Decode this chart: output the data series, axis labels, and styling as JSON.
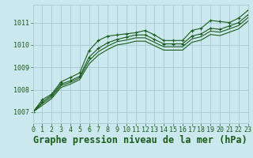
{
  "title": "Graphe pression niveau de la mer (hPa)",
  "bg_color": "#cce8ef",
  "grid_color": "#aacdd6",
  "line_color": "#1a5c1a",
  "xlim": [
    0,
    23
  ],
  "ylim": [
    1006.5,
    1011.8
  ],
  "xticks": [
    0,
    1,
    2,
    3,
    4,
    5,
    6,
    7,
    8,
    9,
    10,
    11,
    12,
    13,
    14,
    15,
    16,
    17,
    18,
    19,
    20,
    21,
    22,
    23
  ],
  "yticks": [
    1007,
    1008,
    1009,
    1010,
    1011
  ],
  "series": [
    {
      "y": [
        1007.0,
        1007.55,
        1007.8,
        1008.35,
        1008.55,
        1008.75,
        1009.75,
        1010.2,
        1010.4,
        1010.45,
        1010.5,
        1010.55,
        1010.65,
        1010.45,
        1010.2,
        1010.2,
        1010.2,
        1010.65,
        1010.75,
        1011.1,
        1011.05,
        1011.0,
        1011.2,
        1011.55
      ],
      "marker": true,
      "marker_style": "+"
    },
    {
      "y": [
        1007.0,
        1007.45,
        1007.75,
        1008.25,
        1008.4,
        1008.6,
        1009.45,
        1009.85,
        1010.1,
        1010.25,
        1010.35,
        1010.45,
        1010.45,
        1010.25,
        1010.05,
        1010.05,
        1010.05,
        1010.4,
        1010.5,
        1010.75,
        1010.7,
        1010.85,
        1011.0,
        1011.35
      ],
      "marker": true,
      "marker_style": "+"
    },
    {
      "y": [
        1007.0,
        1007.38,
        1007.68,
        1008.18,
        1008.33,
        1008.53,
        1009.3,
        1009.7,
        1009.95,
        1010.15,
        1010.22,
        1010.32,
        1010.32,
        1010.12,
        1009.92,
        1009.92,
        1009.92,
        1010.27,
        1010.37,
        1010.62,
        1010.57,
        1010.72,
        1010.87,
        1011.22
      ],
      "marker": false
    },
    {
      "y": [
        1007.0,
        1007.3,
        1007.6,
        1008.1,
        1008.25,
        1008.45,
        1009.15,
        1009.55,
        1009.8,
        1010.0,
        1010.07,
        1010.17,
        1010.17,
        1009.97,
        1009.77,
        1009.77,
        1009.77,
        1010.12,
        1010.22,
        1010.47,
        1010.42,
        1010.57,
        1010.72,
        1011.07
      ],
      "marker": false
    }
  ],
  "title_fontsize": 8.5,
  "tick_fontsize": 6
}
